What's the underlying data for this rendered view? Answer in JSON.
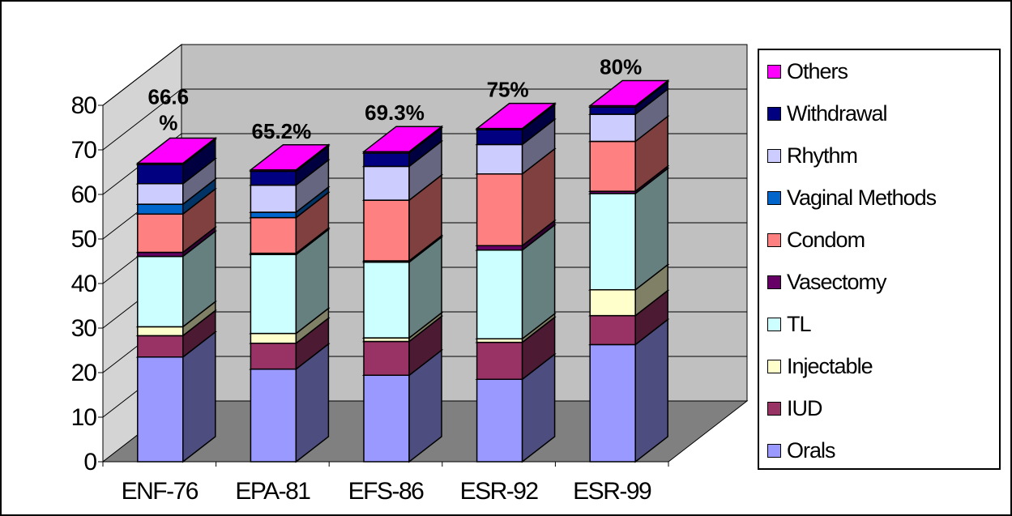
{
  "chart_data": {
    "type": "bar",
    "stacked": true,
    "three_d": true,
    "categories": [
      "ENF-76",
      "EPA-81",
      "EFS-86",
      "ESR-92",
      "ESR-99"
    ],
    "ylim": [
      0,
      80
    ],
    "yticks": [
      0,
      10,
      20,
      30,
      40,
      50,
      60,
      70,
      80
    ],
    "ytick_labels": [
      "0",
      "10",
      "20",
      "30",
      "40",
      "50",
      "60",
      "70",
      "80"
    ],
    "grid": true,
    "legend_position": "right",
    "totals_labels": [
      "66.6\n%",
      "65.2%",
      "69.3%",
      "75%",
      "80%"
    ],
    "series": [
      {
        "name": "Orals",
        "color": "#9999ff",
        "values": [
          23.5,
          20.8,
          19.4,
          18.5,
          26.3
        ]
      },
      {
        "name": "IUD",
        "color": "#993366",
        "values": [
          4.8,
          5.8,
          7.6,
          8.3,
          6.5
        ]
      },
      {
        "name": "Injectable",
        "color": "#ffffcc",
        "values": [
          2.0,
          2.2,
          0.8,
          0.8,
          5.8
        ]
      },
      {
        "name": "TL",
        "color": "#ccffff",
        "values": [
          15.8,
          17.7,
          17.0,
          19.9,
          21.6
        ]
      },
      {
        "name": "Vasectomy",
        "color": "#660066",
        "values": [
          0.9,
          0.3,
          0.3,
          1.0,
          0.5
        ]
      },
      {
        "name": "Condom",
        "color": "#ff8080",
        "values": [
          8.6,
          8.0,
          13.6,
          16.1,
          11.2
        ]
      },
      {
        "name": "Vaginal Methods",
        "color": "#0066cc",
        "values": [
          2.2,
          1.2,
          0.0,
          0.0,
          0.0
        ]
      },
      {
        "name": "Rhythm",
        "color": "#ccccff",
        "values": [
          4.6,
          6.1,
          7.6,
          6.6,
          6.1
        ]
      },
      {
        "name": "Withdrawal",
        "color": "#000080",
        "values": [
          4.3,
          3.1,
          3.0,
          3.3,
          1.6
        ]
      },
      {
        "name": "Others",
        "color": "#ff00ff",
        "values": [
          0.3,
          0.3,
          0.3,
          0.3,
          0.3
        ]
      }
    ]
  }
}
